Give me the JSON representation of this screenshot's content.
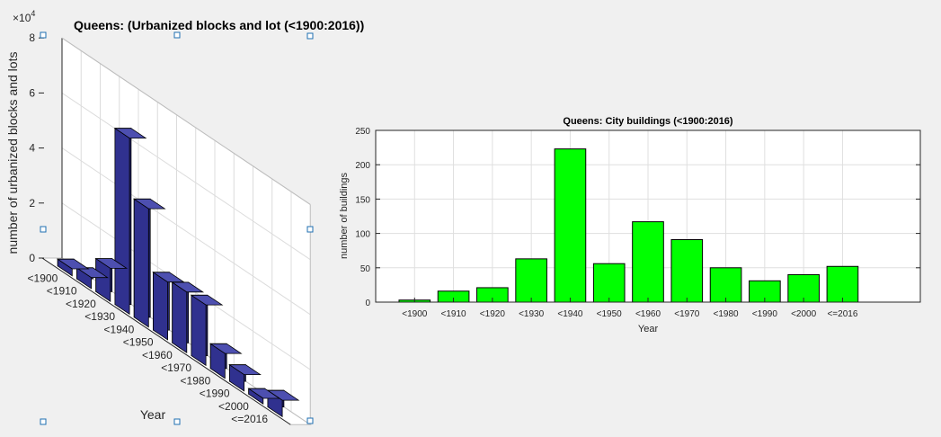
{
  "chart_data": [
    {
      "type": "bar",
      "view": "3d",
      "title": "Queens: (Urbanized blocks and lot (<1900:2016))",
      "xlabel": "Year",
      "ylabel": "number of urbanized blocks and lots",
      "exponent_label": "10",
      "exponent_power": "4",
      "multiplier_prefix": "×",
      "ylim": [
        0,
        8
      ],
      "yticks": [
        "0",
        "2",
        "4",
        "6",
        "8"
      ],
      "categories": [
        "<1900",
        "<1910",
        "<1920",
        "<1930",
        "<1940",
        "<1950",
        "<1960",
        "<1970",
        "<1980",
        "<1990",
        "<2000",
        "<=2016"
      ],
      "values": [
        0.25,
        0.4,
        1.2,
        6.4,
        4.3,
        2.1,
        2.2,
        2.2,
        0.9,
        0.6,
        0.2,
        0.6
      ],
      "value_scale": 10000,
      "bar_color": "#30318f",
      "grid": true
    },
    {
      "type": "bar",
      "title": "Queens: City buildings (<1900:2016)",
      "xlabel": "Year",
      "ylabel": "number of buildings",
      "ylim": [
        0,
        250
      ],
      "yticks": [
        "0",
        "50",
        "100",
        "150",
        "200",
        "250"
      ],
      "categories": [
        "<1900",
        "<1910",
        "<1920",
        "<1930",
        "<1940",
        "<1950",
        "<1960",
        "<1970",
        "<1980",
        "<1990",
        "<2000",
        "<=2016"
      ],
      "values": [
        3,
        16,
        21,
        63,
        223,
        56,
        117,
        91,
        50,
        31,
        40,
        52
      ],
      "bar_color": "#00ff00",
      "grid": true
    }
  ]
}
